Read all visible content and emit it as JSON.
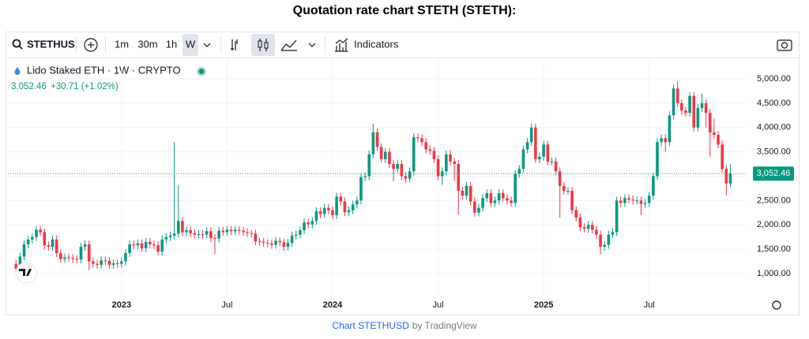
{
  "chart_data": {
    "type": "candlestick",
    "title": "Quotation rate chart STETH (STETH):",
    "subtitle": "Lido Staked ETH · 1W · CRYPTO",
    "last_price": {
      "value": 3052.46,
      "label": "3,052.46"
    },
    "change": "+30.71 (+1.02%)",
    "toolbar": {
      "symbol": "STETHUS",
      "intervals": [
        "1m",
        "30m",
        "1h",
        "W"
      ],
      "indicators": "Indicators"
    },
    "footer": {
      "link": "Chart STETHUSD",
      "by": "by TradingView"
    },
    "up_color": "#089981",
    "down_color": "#f23645",
    "grid": true,
    "xlim": [
      -2,
      180
    ],
    "xticks": [
      {
        "value": 26,
        "label": "2023"
      },
      {
        "value": 52,
        "label": "Jul"
      },
      {
        "value": 78,
        "label": "2024"
      },
      {
        "value": 104,
        "label": "Jul"
      },
      {
        "value": 130,
        "label": "2025"
      },
      {
        "value": 156,
        "label": "Jul"
      }
    ],
    "ylim": [
      546,
      5405
    ],
    "yticks": [
      {
        "value": 1000,
        "label": "1,000.00"
      },
      {
        "value": 1500,
        "label": "1,500.00"
      },
      {
        "value": 2000,
        "label": "2,000.00"
      },
      {
        "value": 2500,
        "label": "2,500.00"
      },
      {
        "value": 3000,
        "label": "3,000.00"
      },
      {
        "value": 3500,
        "label": "3,500.00"
      },
      {
        "value": 4000,
        "label": "4,000.00"
      },
      {
        "value": 4500,
        "label": "4,500.00"
      },
      {
        "value": 5000,
        "label": "5,000.00"
      }
    ],
    "open": [
      1200,
      1100,
      1350,
      1600,
      1700,
      1750,
      1900,
      1850,
      1580,
      1550,
      1700,
      1420,
      1300,
      1330,
      1320,
      1300,
      1290,
      1550,
      1600,
      1250,
      1200,
      1180,
      1270,
      1260,
      1180,
      1210,
      1200,
      1250,
      1420,
      1600,
      1580,
      1620,
      1520,
      1650,
      1600,
      1580,
      1450,
      1700,
      1750,
      1780,
      1820,
      2080,
      1850,
      1890,
      1830,
      1800,
      1810,
      1800,
      1870,
      1730,
      1720,
      1880,
      1850,
      1900,
      1870,
      1900,
      1880,
      1850,
      1830,
      1820,
      1660,
      1650,
      1630,
      1620,
      1590,
      1670,
      1640,
      1550,
      1630,
      1780,
      1800,
      1890,
      2050,
      2010,
      2080,
      2280,
      2220,
      2350,
      2300,
      2200,
      2580,
      2480,
      2260,
      2300,
      2420,
      2500,
      2980,
      3000,
      3450,
      3900,
      3600,
      3350,
      3500,
      3250,
      3150,
      3250,
      3000,
      2950,
      3100,
      3800,
      3780,
      3700,
      3550,
      3520,
      3350,
      3000,
      3100,
      3450,
      3300,
      3250,
      2700,
      2600,
      2800,
      2480,
      2250,
      2350,
      2550,
      2650,
      2450,
      2500,
      2650,
      2550,
      2500,
      2450,
      3050,
      3150,
      3550,
      3700,
      4000,
      3350,
      3400,
      3650,
      3300,
      3300,
      3100,
      2800,
      2700,
      2700,
      2300,
      2150,
      1950,
      1920,
      2000,
      1900,
      1800,
      1550,
      1590,
      1800,
      1850,
      2500,
      2450,
      2550,
      2520,
      2500,
      2500,
      2430,
      2450,
      2600,
      3000,
      3700,
      3780,
      3700,
      4250,
      4800,
      4500,
      4350,
      4300,
      4650,
      4000,
      4400,
      4500,
      4300,
      3900,
      3850,
      3650,
      3150,
      2850
    ],
    "high": [
      1280,
      1430,
      1680,
      1780,
      1830,
      1980,
      1980,
      1930,
      1660,
      1780,
      1780,
      1500,
      1410,
      1410,
      1400,
      1380,
      1630,
      1680,
      1680,
      1330,
      1280,
      1350,
      1350,
      1340,
      1290,
      1290,
      1330,
      1500,
      1680,
      1680,
      1700,
      1700,
      1730,
      1730,
      1680,
      1660,
      1780,
      1830,
      1860,
      3700,
      2820,
      2160,
      1970,
      1970,
      1910,
      1890,
      1890,
      1950,
      1950,
      1810,
      1960,
      1960,
      1980,
      1980,
      1980,
      1980,
      1960,
      1930,
      1900,
      1900,
      1740,
      1730,
      1700,
      1700,
      1750,
      1750,
      1720,
      1710,
      1860,
      1880,
      1970,
      2130,
      2130,
      2160,
      2360,
      2360,
      2430,
      2430,
      2380,
      2660,
      2660,
      2560,
      2380,
      2500,
      2580,
      3060,
      3080,
      3530,
      4080,
      3980,
      3680,
      3580,
      3580,
      3330,
      3330,
      3330,
      3080,
      3180,
      3880,
      3880,
      3860,
      3780,
      3630,
      3600,
      3430,
      3180,
      3530,
      3530,
      3380,
      3330,
      2780,
      2880,
      2880,
      2560,
      2430,
      2630,
      2730,
      2730,
      2580,
      2730,
      2730,
      2630,
      2580,
      3130,
      3230,
      3630,
      3780,
      4080,
      4080,
      3480,
      3730,
      3730,
      3380,
      3380,
      3180,
      2880,
      2780,
      2780,
      2380,
      2230,
      2030,
      2080,
      2080,
      1980,
      1880,
      1670,
      1880,
      1930,
      2580,
      2580,
      2630,
      2630,
      2600,
      2580,
      2580,
      2530,
      2680,
      3080,
      3780,
      3860,
      3860,
      4330,
      4880,
      4950,
      4580,
      4430,
      4730,
      4730,
      4480,
      4700,
      4580,
      4380,
      4180,
      3930,
      3730,
      3230,
      3250
    ],
    "low": [
      1020,
      1060,
      1270,
      1520,
      1620,
      1670,
      1770,
      1500,
      1470,
      1470,
      1340,
      1220,
      1220,
      1240,
      1220,
      1210,
      1210,
      1470,
      1070,
      1120,
      1100,
      1100,
      1180,
      1100,
      1100,
      1120,
      1120,
      1170,
      1340,
      1500,
      1500,
      1440,
      1440,
      1520,
      1500,
      1370,
      1370,
      1620,
      1670,
      1700,
      1740,
      1770,
      1770,
      1750,
      1720,
      1720,
      1720,
      1720,
      1650,
      1400,
      1640,
      1770,
      1770,
      1790,
      1790,
      1800,
      1770,
      1750,
      1740,
      1580,
      1570,
      1550,
      1540,
      1510,
      1510,
      1560,
      1470,
      1470,
      1550,
      1700,
      1720,
      1810,
      1930,
      1930,
      2000,
      2140,
      2140,
      2220,
      2120,
      2120,
      2400,
      2180,
      2180,
      2220,
      2340,
      2420,
      2900,
      2920,
      3370,
      3520,
      3270,
      3270,
      3170,
      2900,
      3070,
      2920,
      2870,
      2870,
      3020,
      3700,
      3620,
      3470,
      3440,
      3270,
      2920,
      2820,
      3020,
      3220,
      2900,
      2200,
      2520,
      2520,
      2400,
      2170,
      2170,
      2270,
      2470,
      2370,
      2370,
      2420,
      2470,
      2420,
      2370,
      2370,
      2970,
      3070,
      3470,
      3620,
      3270,
      3270,
      3320,
      3220,
      3220,
      3020,
      2150,
      2620,
      2620,
      2220,
      2070,
      1870,
      1840,
      1840,
      1820,
      1720,
      1400,
      1470,
      1510,
      1720,
      1770,
      2370,
      2370,
      2440,
      2420,
      2420,
      2200,
      2350,
      2370,
      2520,
      2920,
      3620,
      3500,
      3620,
      4170,
      4420,
      4270,
      4220,
      4220,
      3920,
      3920,
      4320,
      4000,
      3400,
      3770,
      3570,
      3070,
      2600,
      2770
    ],
    "close": [
      1100,
      1350,
      1600,
      1700,
      1750,
      1900,
      1850,
      1580,
      1550,
      1700,
      1420,
      1300,
      1330,
      1320,
      1300,
      1290,
      1550,
      1600,
      1250,
      1200,
      1180,
      1270,
      1260,
      1180,
      1210,
      1200,
      1250,
      1420,
      1600,
      1580,
      1620,
      1520,
      1650,
      1600,
      1580,
      1450,
      1700,
      1750,
      1780,
      1820,
      2080,
      1850,
      1890,
      1830,
      1800,
      1810,
      1800,
      1870,
      1730,
      1720,
      1880,
      1850,
      1900,
      1870,
      1900,
      1880,
      1850,
      1830,
      1820,
      1660,
      1650,
      1630,
      1620,
      1590,
      1670,
      1640,
      1550,
      1630,
      1780,
      1800,
      1890,
      2050,
      2010,
      2080,
      2280,
      2220,
      2350,
      2300,
      2200,
      2580,
      2480,
      2260,
      2300,
      2420,
      2500,
      2980,
      3000,
      3450,
      3900,
      3600,
      3350,
      3500,
      3250,
      3150,
      3250,
      3000,
      2950,
      3100,
      3800,
      3780,
      3700,
      3550,
      3520,
      3350,
      3000,
      3100,
      3450,
      3300,
      3250,
      2700,
      2600,
      2800,
      2480,
      2250,
      2350,
      2550,
      2650,
      2450,
      2500,
      2650,
      2550,
      2500,
      2450,
      3050,
      3150,
      3550,
      3700,
      4000,
      3350,
      3400,
      3650,
      3300,
      3300,
      3100,
      2800,
      2700,
      2700,
      2300,
      2150,
      1950,
      1920,
      2000,
      1900,
      1800,
      1550,
      1590,
      1800,
      1850,
      2500,
      2450,
      2550,
      2520,
      2500,
      2500,
      2430,
      2450,
      2600,
      3000,
      3700,
      3780,
      3700,
      4250,
      4800,
      4500,
      4350,
      4300,
      4650,
      4000,
      4400,
      4500,
      4300,
      3900,
      3850,
      3650,
      3150,
      2850,
      3052.46
    ]
  }
}
